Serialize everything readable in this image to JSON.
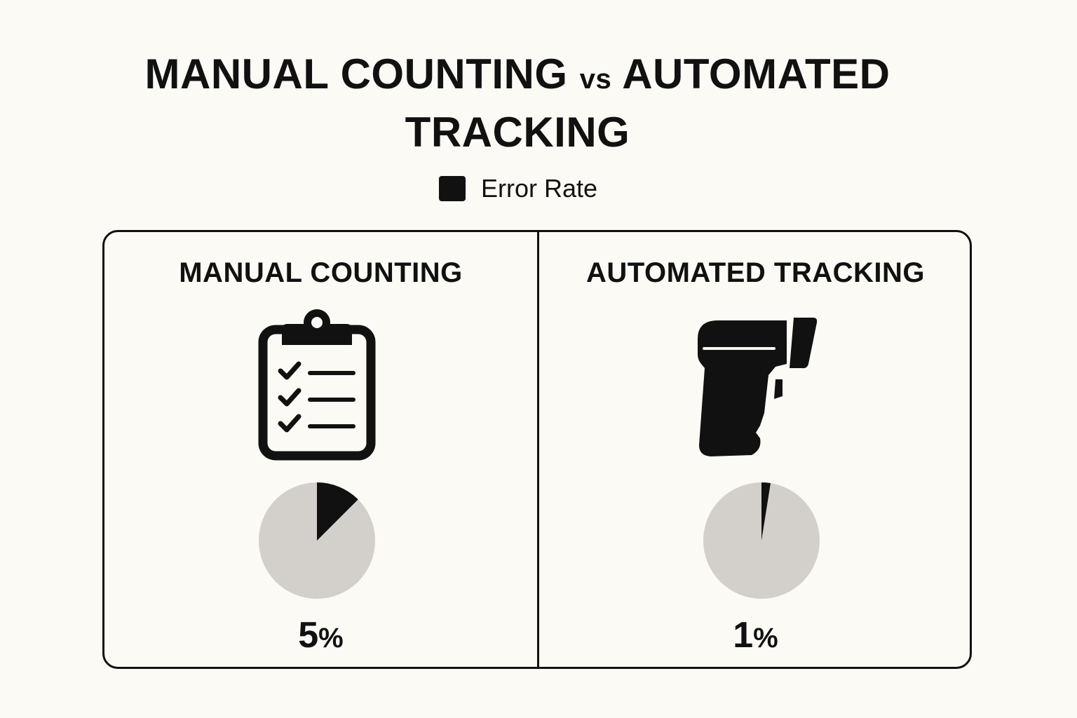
{
  "chart_data": {
    "type": "pie",
    "title_line1": "MANUAL COUNTING",
    "title_vs": "vs",
    "title_line1_end": "AUTOMATED",
    "title_line2": "TRACKING",
    "legend": [
      {
        "label": "Error Rate",
        "color": "#111111"
      }
    ],
    "remainder_color": "#d3d0cb",
    "panels": [
      {
        "name": "MANUAL COUNTING",
        "icon": "clipboard-checklist-icon",
        "error_rate": 5,
        "display_value": "5",
        "unit": "%"
      },
      {
        "name": "AUTOMATED TRACKING",
        "icon": "barcode-scanner-icon",
        "error_rate": 1,
        "display_value": "1",
        "unit": "%"
      }
    ]
  }
}
